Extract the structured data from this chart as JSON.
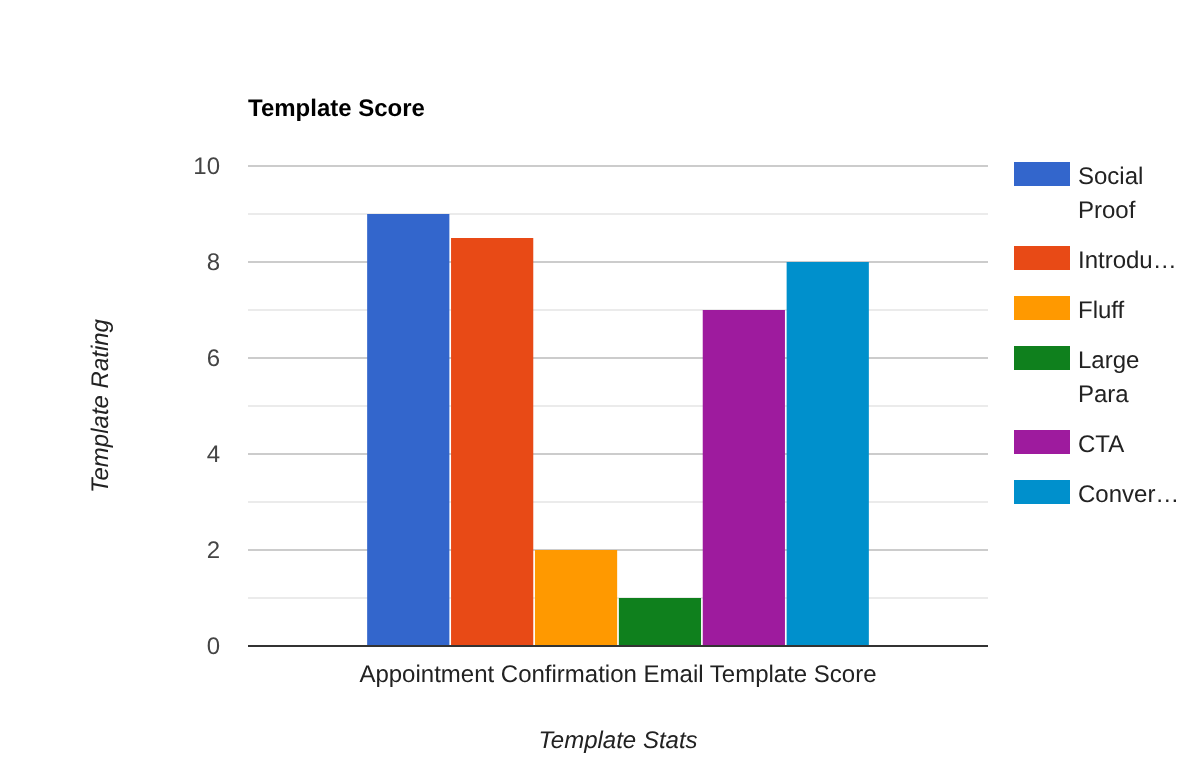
{
  "chart_data": {
    "type": "bar",
    "title": "Template Score",
    "xlabel": "Template Stats",
    "ylabel": "Template Rating",
    "categories": [
      "Appointment Confirmation Email Template Score"
    ],
    "series": [
      {
        "name": "Social Proof",
        "color": "#3366cc",
        "values": [
          9
        ]
      },
      {
        "name": "Introdu…",
        "color": "#e84a16",
        "values": [
          8.5
        ]
      },
      {
        "name": "Fluff",
        "color": "#ff9900",
        "values": [
          2
        ]
      },
      {
        "name": "Large Para",
        "color": "#0f801d",
        "values": [
          1
        ]
      },
      {
        "name": "CTA",
        "color": "#9e1b9e",
        "values": [
          7
        ]
      },
      {
        "name": "Conver…",
        "color": "#0090cc",
        "values": [
          8
        ]
      }
    ],
    "ylim": [
      0,
      10
    ],
    "yticks": [
      0,
      {
        "value": 1,
        "label": null
      },
      2,
      {
        "value": 3,
        "label": null
      },
      4,
      {
        "value": 5,
        "label": null
      },
      6,
      {
        "value": 7,
        "label": null
      },
      8,
      {
        "value": 9,
        "label": null
      },
      10
    ],
    "grid": "y",
    "legend": "right"
  }
}
